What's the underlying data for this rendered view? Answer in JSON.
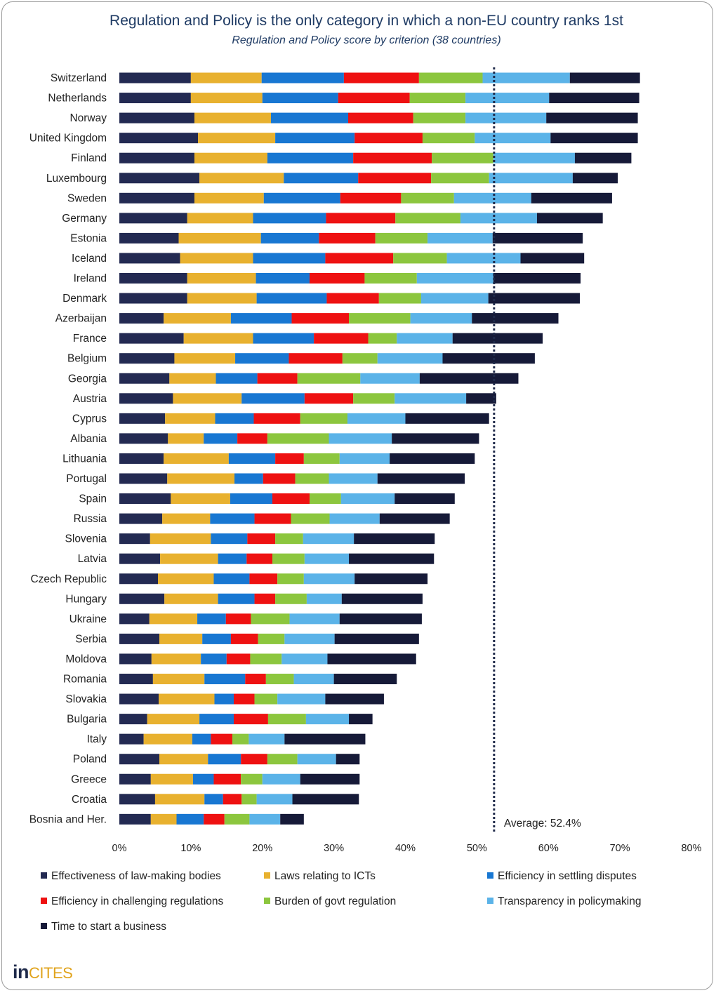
{
  "header": {
    "title": "Regulation and Policy is the only category in which a non-EU country ranks 1st",
    "subtitle": "Regulation and Policy score by criterion (38 countries)"
  },
  "brand": {
    "logo_in": "in",
    "logo_cites": "CITES"
  },
  "chart_data": {
    "type": "bar",
    "orientation": "horizontal",
    "stacked": true,
    "title": "Regulation and Policy is the only category in which a non-EU country ranks 1st",
    "subtitle": "Regulation and Policy score by criterion (38 countries)",
    "xlim": [
      0,
      80
    ],
    "x_ticks": [
      "0%",
      "10%",
      "20%",
      "30%",
      "40%",
      "50%",
      "60%",
      "70%",
      "80%"
    ],
    "grid": false,
    "legend_position": "bottom",
    "reference_line": {
      "value": 52.4,
      "label": "Average: 52.4%",
      "color": "#1f2a4a"
    },
    "categories": [
      "Switzerland",
      "Netherlands",
      "Norway",
      "United Kingdom",
      "Finland",
      "Luxembourg",
      "Sweden",
      "Germany",
      "Estonia",
      "Iceland",
      "Ireland",
      "Denmark",
      "Azerbaijan",
      "France",
      "Belgium",
      "Georgia",
      "Austria",
      "Cyprus",
      "Albania",
      "Lithuania",
      "Portugal",
      "Spain",
      "Russia",
      "Slovenia",
      "Latvia",
      "Czech Republic",
      "Hungary",
      "Ukraine",
      "Serbia",
      "Moldova",
      "Romania",
      "Slovakia",
      "Bulgaria",
      "Italy",
      "Poland",
      "Greece",
      "Croatia",
      "Bosnia and Her."
    ],
    "series": [
      {
        "name": "Effectiveness of law-making bodies",
        "color": "#232a52",
        "values": [
          10.0,
          10.0,
          10.5,
          11.0,
          10.5,
          11.2,
          10.5,
          9.5,
          8.3,
          8.5,
          9.5,
          9.5,
          6.2,
          9.0,
          7.7,
          7.0,
          7.5,
          6.4,
          6.8,
          6.2,
          6.7,
          7.2,
          6.0,
          4.3,
          5.7,
          5.4,
          6.3,
          4.2,
          5.6,
          4.5,
          4.7,
          5.5,
          3.9,
          3.4,
          5.6,
          4.4,
          5.0,
          4.4
        ]
      },
      {
        "name": "Laws relating to ICTs",
        "color": "#e8b12f",
        "values": [
          9.9,
          10.0,
          10.7,
          10.8,
          10.2,
          11.8,
          9.7,
          9.2,
          11.5,
          10.2,
          9.6,
          9.7,
          9.4,
          9.7,
          8.5,
          6.5,
          9.6,
          7.0,
          5.0,
          9.1,
          9.4,
          8.3,
          6.7,
          8.5,
          8.1,
          7.8,
          7.5,
          6.7,
          6.0,
          6.9,
          7.2,
          7.8,
          7.3,
          6.8,
          6.8,
          5.9,
          6.9,
          3.6
        ]
      },
      {
        "name": "Efficiency in settling disputes",
        "color": "#1877d2",
        "values": [
          11.5,
          10.6,
          10.8,
          11.1,
          12.0,
          10.4,
          10.7,
          10.2,
          8.1,
          10.1,
          7.5,
          9.8,
          8.5,
          8.5,
          7.5,
          5.8,
          8.8,
          5.4,
          4.7,
          6.5,
          4.0,
          5.9,
          6.2,
          5.1,
          4.0,
          5.0,
          5.1,
          4.0,
          4.0,
          3.6,
          5.7,
          2.7,
          4.8,
          2.6,
          4.6,
          2.9,
          2.6,
          3.8
        ]
      },
      {
        "name": "Efficiency in challenging regulations",
        "color": "#ee1111",
        "values": [
          10.5,
          10.0,
          9.1,
          9.5,
          11.0,
          10.2,
          8.5,
          9.7,
          7.9,
          9.5,
          7.7,
          7.3,
          8.0,
          7.6,
          7.5,
          5.6,
          6.8,
          6.5,
          4.2,
          4.0,
          4.5,
          5.2,
          5.1,
          3.9,
          3.6,
          3.9,
          2.9,
          3.5,
          3.8,
          3.3,
          2.9,
          2.9,
          4.8,
          3.0,
          3.7,
          3.8,
          2.6,
          2.9
        ]
      },
      {
        "name": "Burden of govt regulation",
        "color": "#8cc63e",
        "values": [
          8.9,
          7.8,
          7.3,
          7.3,
          8.6,
          8.1,
          7.4,
          9.1,
          7.3,
          7.5,
          7.3,
          5.9,
          8.6,
          4.0,
          4.9,
          8.8,
          5.8,
          6.6,
          8.6,
          5.0,
          4.7,
          4.4,
          5.4,
          3.9,
          4.5,
          3.7,
          4.4,
          5.4,
          3.7,
          4.4,
          3.9,
          3.2,
          5.3,
          2.3,
          4.2,
          3.0,
          2.1,
          3.5
        ]
      },
      {
        "name": "Transparency in policymaking",
        "color": "#5bb3e8",
        "values": [
          12.2,
          11.7,
          11.3,
          10.6,
          11.4,
          11.7,
          10.8,
          10.7,
          9.1,
          10.3,
          10.7,
          9.4,
          8.6,
          7.8,
          9.1,
          8.3,
          10.0,
          8.1,
          8.8,
          7.0,
          6.8,
          7.5,
          7.0,
          7.1,
          6.2,
          7.1,
          4.9,
          7.0,
          7.0,
          6.4,
          5.6,
          6.7,
          6.0,
          5.0,
          5.4,
          5.3,
          5.0,
          4.3
        ]
      },
      {
        "name": "Time to start a business",
        "color": "#161a38",
        "values": [
          9.8,
          12.6,
          12.8,
          12.2,
          7.9,
          6.3,
          11.3,
          9.2,
          12.6,
          8.9,
          12.2,
          12.8,
          12.1,
          12.6,
          12.9,
          13.8,
          4.2,
          11.7,
          12.2,
          11.9,
          12.2,
          8.4,
          9.8,
          11.3,
          11.9,
          10.2,
          11.3,
          11.5,
          11.8,
          12.4,
          8.8,
          8.2,
          3.3,
          11.3,
          3.3,
          8.3,
          9.3,
          3.3
        ]
      }
    ]
  }
}
